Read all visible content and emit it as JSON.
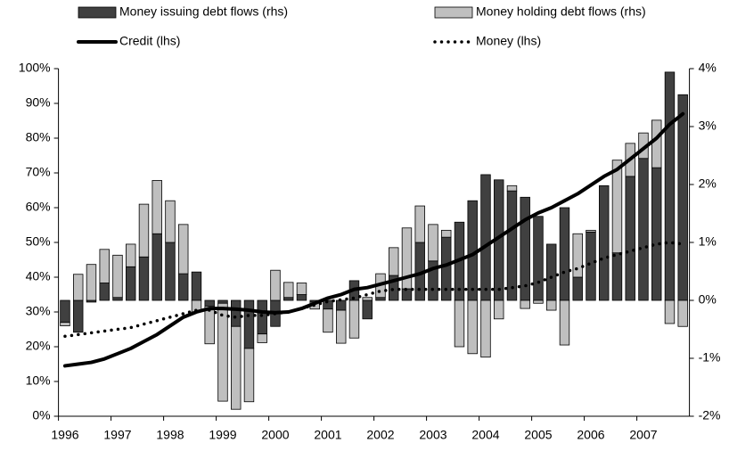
{
  "chart_data": {
    "type": "bar",
    "categories": [
      "1996",
      null,
      null,
      null,
      "1997",
      null,
      null,
      null,
      "1998",
      null,
      null,
      null,
      "1999",
      null,
      null,
      null,
      "2000",
      null,
      null,
      null,
      "2001",
      null,
      null,
      null,
      "2002",
      null,
      null,
      null,
      "2003",
      null,
      null,
      null,
      "2004",
      null,
      null,
      null,
      "2005",
      null,
      null,
      null,
      "2006",
      null,
      null,
      null,
      "2007",
      null,
      null,
      null
    ],
    "series": [
      {
        "name": "Money issuing debt flows (rhs)",
        "type": "bar",
        "axis": "y2",
        "color": "#404040",
        "values": [
          -0.38,
          -0.55,
          -0.03,
          0.3,
          0.05,
          0.58,
          0.75,
          1.15,
          1.0,
          0.46,
          0.49,
          -0.1,
          -0.05,
          -0.45,
          -0.83,
          -0.58,
          -0.45,
          0.05,
          0.1,
          -0.03,
          -0.15,
          -0.17,
          0.34,
          -0.32,
          0.05,
          0.43,
          0.2,
          1.0,
          0.68,
          1.09,
          1.35,
          1.72,
          2.17,
          2.08,
          1.89,
          1.78,
          1.45,
          0.97,
          1.6,
          0.4,
          1.18,
          1.98,
          0.82,
          2.14,
          2.45,
          2.29,
          3.94,
          3.55
        ]
      },
      {
        "name": "Money holding debt flows (rhs)",
        "type": "bar",
        "axis": "y2",
        "color": "#bfbfbf",
        "values": [
          -0.06,
          0.45,
          0.62,
          0.58,
          0.73,
          0.39,
          0.91,
          0.92,
          0.72,
          0.85,
          -0.2,
          -0.65,
          -1.69,
          -1.43,
          -0.92,
          -0.15,
          0.52,
          0.26,
          0.2,
          -0.12,
          -0.4,
          -0.57,
          -0.65,
          0.05,
          0.41,
          0.48,
          1.05,
          0.63,
          0.63,
          0.12,
          -0.8,
          -0.92,
          -0.98,
          -0.32,
          0.09,
          -0.14,
          -0.05,
          -0.17,
          -0.77,
          0.75,
          0.03,
          0,
          1.6,
          0.57,
          0.44,
          0.82,
          -0.4,
          -0.45
        ]
      },
      {
        "name": "Credit (lhs)",
        "type": "line",
        "axis": "y",
        "color": "#000000",
        "dash": "solid",
        "values": [
          14.5,
          15,
          15.5,
          16.5,
          18,
          19.5,
          21.5,
          23.5,
          26,
          28.5,
          30,
          31,
          31,
          30.8,
          30.5,
          30,
          29.8,
          30,
          31,
          32.5,
          34,
          35,
          36.5,
          37,
          38,
          39,
          40,
          41,
          42.5,
          43.5,
          45,
          46.5,
          49,
          51.5,
          54,
          56.5,
          58.5,
          60,
          62,
          64,
          66.5,
          69,
          71,
          74,
          77,
          80,
          84,
          87
        ]
      },
      {
        "name": "Money (lhs)",
        "type": "line",
        "axis": "y",
        "color": "#000000",
        "dash": "dotted",
        "values": [
          23,
          23.5,
          24,
          24.5,
          25,
          25.5,
          26.5,
          27.5,
          28.5,
          29.5,
          30.5,
          30.5,
          29,
          28.5,
          29,
          29,
          29.5,
          30,
          31,
          32,
          33,
          33.5,
          34,
          35,
          36,
          36.5,
          36.5,
          36.5,
          36.5,
          36.5,
          36.5,
          36.5,
          36.5,
          36.5,
          37,
          37.5,
          38.5,
          40,
          41.5,
          42.5,
          44,
          45.5,
          46.5,
          47.5,
          48.5,
          49.5,
          50,
          49.5
        ]
      }
    ],
    "ylim": [
      0,
      100
    ],
    "yticks": [
      {
        "value": 0,
        "label": "0%"
      },
      {
        "value": 10,
        "label": "10%"
      },
      {
        "value": 20,
        "label": "20%"
      },
      {
        "value": 30,
        "label": "30%"
      },
      {
        "value": 40,
        "label": "40%"
      },
      {
        "value": 50,
        "label": "50%"
      },
      {
        "value": 60,
        "label": "60%"
      },
      {
        "value": 70,
        "label": "70%"
      },
      {
        "value": 80,
        "label": "80%"
      },
      {
        "value": 90,
        "label": "90%"
      },
      {
        "value": 100,
        "label": "100%"
      }
    ],
    "y2lim": [
      -2,
      4
    ],
    "y2ticks": [
      {
        "value": -2,
        "label": "-2%"
      },
      {
        "value": -1,
        "label": "-1%"
      },
      {
        "value": 0,
        "label": "0%"
      },
      {
        "value": 1,
        "label": "1%"
      },
      {
        "value": 2,
        "label": "2%"
      },
      {
        "value": 3,
        "label": "3%"
      },
      {
        "value": 4,
        "label": "4%"
      }
    ],
    "grid": false
  }
}
